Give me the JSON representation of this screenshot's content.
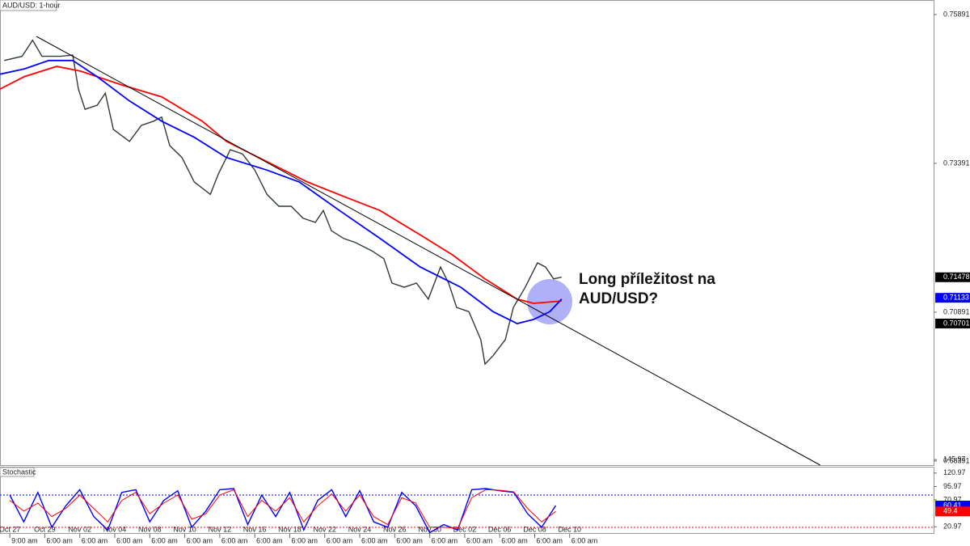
{
  "chart_data": [
    {
      "type": "line",
      "title": "AUD/USD: 1-hour",
      "xlim": [
        -0.28,
        26.4
      ],
      "ylim": [
        0.68322,
        0.76136
      ],
      "yticks": [
        0.75891,
        0.73391,
        0.70891,
        0.68391
      ],
      "xticks": [
        {
          "value": 0,
          "label": "Oct 27"
        },
        {
          "value": 1,
          "label": "Oct 29"
        },
        {
          "value": 2,
          "label": "Nov 02"
        },
        {
          "value": 3,
          "label": "Nov 04"
        },
        {
          "value": 4,
          "label": "Nov 08"
        },
        {
          "value": 5,
          "label": "Nov 10"
        },
        {
          "value": 6,
          "label": "Nov 12"
        },
        {
          "value": 7,
          "label": "Nov 16"
        },
        {
          "value": 8,
          "label": "Nov 18"
        },
        {
          "value": 9,
          "label": "Nov 22"
        },
        {
          "value": 10,
          "label": "Nov 24"
        },
        {
          "value": 11,
          "label": "Nov 26"
        },
        {
          "value": 12,
          "label": "Nov 30"
        },
        {
          "value": 13,
          "label": "Dec 02"
        },
        {
          "value": 14,
          "label": "Dec 06"
        },
        {
          "value": 15,
          "label": "Dec 08"
        },
        {
          "value": 16,
          "label": "Dec 10"
        }
      ],
      "xtick_times": [
        "9:00 am",
        "6:00 am",
        "6:00 am",
        "6:00 am",
        "6:00 am",
        "6:00 am",
        "6:00 am",
        "6:00 am",
        "6:00 am",
        "6:00 am",
        "6:00 am",
        "6:00 am",
        "6:00 am",
        "6:00 am",
        "6:00 am",
        "6:00 am",
        "6:00 am"
      ],
      "series": [
        {
          "color": "#2f3b2f",
          "x": [
            -0.16,
            0.35,
            0.65,
            0.92,
            1.45,
            1.8,
            1.96,
            2.15,
            2.5,
            2.73,
            2.96,
            3.42,
            3.76,
            4.11,
            4.34,
            4.57,
            4.92,
            5.27,
            5.73,
            5.96,
            6.3,
            6.65,
            7.0,
            7.35,
            7.69,
            8.04,
            8.38,
            8.73,
            8.96,
            9.19,
            9.54,
            9.88,
            10.35,
            10.69,
            10.92,
            11.27,
            11.62,
            11.96,
            12.31,
            12.54,
            12.77,
            13.12,
            13.46,
            13.58,
            13.81,
            14.16,
            14.39,
            14.73,
            15.08,
            15.31,
            15.54,
            15.77
          ],
          "values": [
            0.7512,
            0.7519,
            0.7546,
            0.7519,
            0.7519,
            0.7521,
            0.7464,
            0.743,
            0.7437,
            0.7457,
            0.7396,
            0.7376,
            0.7403,
            0.741,
            0.7417,
            0.7369,
            0.7349,
            0.7308,
            0.7287,
            0.7321,
            0.7362,
            0.7355,
            0.7328,
            0.7287,
            0.7267,
            0.7267,
            0.7247,
            0.724,
            0.726,
            0.7226,
            0.7213,
            0.7206,
            0.7192,
            0.7179,
            0.7138,
            0.7131,
            0.7138,
            0.7111,
            0.7165,
            0.7138,
            0.7097,
            0.709,
            0.7043,
            0.7002,
            0.7016,
            0.7043,
            0.7097,
            0.7131,
            0.7172,
            0.7165,
            0.7145,
            0.7148
          ]
        },
        {
          "color": "#ff0000",
          "x": [
            -0.28,
            0.42,
            1.34,
            2.03,
            3.19,
            4.34,
            5.5,
            6.19,
            7.11,
            8.5,
            9.65,
            10.58,
            11.73,
            12.66,
            13.58,
            14.5,
            14.97,
            15.77
          ],
          "values": [
            0.7464,
            0.7485,
            0.7502,
            0.7494,
            0.7471,
            0.7451,
            0.741,
            0.7376,
            0.7349,
            0.7308,
            0.7281,
            0.726,
            0.7219,
            0.7185,
            0.7145,
            0.7111,
            0.7104,
            0.7108
          ]
        },
        {
          "color": "#0000ff",
          "x": [
            -0.28,
            0.42,
            1.11,
            1.8,
            2.49,
            3.42,
            4.34,
            5.27,
            6.19,
            7.34,
            8.27,
            9.42,
            10.58,
            11.73,
            12.89,
            13.81,
            14.5,
            14.97,
            15.43,
            15.77
          ],
          "values": [
            0.7489,
            0.7498,
            0.7512,
            0.7512,
            0.7485,
            0.7444,
            0.741,
            0.7383,
            0.7349,
            0.7328,
            0.7308,
            0.726,
            0.7213,
            0.7165,
            0.7131,
            0.709,
            0.707,
            0.7077,
            0.709,
            0.7111
          ]
        },
        {
          "color": "#000000",
          "x": [
            0.76,
            23.16
          ],
          "values": [
            0.75524,
            0.68322
          ]
        }
      ],
      "price_tags": [
        {
          "value": 0.71478,
          "color": "#000000"
        },
        {
          "value": 0.71133,
          "color": "#0000ff"
        },
        {
          "value": 0.70701,
          "color": "#000000"
        }
      ],
      "annotation": [
        "Long příležitost na",
        "AUD/USD?"
      ]
    },
    {
      "type": "line",
      "title": "Stochastic",
      "xlim": [
        -0.28,
        26.4
      ],
      "ylim": [
        7.7,
        132.7
      ],
      "yticks": [
        145.97,
        120.97,
        95.97,
        70.97,
        20.97
      ],
      "levels": [
        {
          "value": 80,
          "color": "#0000ff"
        },
        {
          "value": 20,
          "color": "#ff0000"
        }
      ],
      "x": [
        0,
        0.4,
        0.8,
        1.2,
        1.6,
        2,
        2.4,
        2.8,
        3.2,
        3.6,
        4,
        4.4,
        4.8,
        5.2,
        5.6,
        6,
        6.4,
        6.8,
        7.2,
        7.6,
        8,
        8.4,
        8.8,
        9.2,
        9.6,
        10,
        10.4,
        10.8,
        11.2,
        11.6,
        12,
        12.4,
        12.8,
        13.2,
        13.6,
        14,
        14.4,
        14.8,
        15.2,
        15.6
      ],
      "series": [
        {
          "color": "#0000ff",
          "values": [
            80,
            30,
            85,
            20,
            60,
            90,
            40,
            15,
            85,
            90,
            30,
            70,
            88,
            20,
            50,
            90,
            92,
            25,
            80,
            40,
            85,
            15,
            70,
            90,
            40,
            88,
            30,
            20,
            85,
            60,
            10,
            25,
            15,
            90,
            92,
            88,
            85,
            45,
            20,
            60.41
          ]
        },
        {
          "color": "#ff0000",
          "values": [
            70,
            50,
            65,
            40,
            55,
            80,
            55,
            30,
            70,
            85,
            45,
            65,
            80,
            35,
            45,
            80,
            90,
            40,
            70,
            50,
            75,
            30,
            60,
            82,
            50,
            80,
            40,
            25,
            75,
            65,
            20,
            20,
            18,
            75,
            90,
            89,
            86,
            55,
            30,
            49.4
          ]
        }
      ],
      "tags": [
        {
          "value": 60.41,
          "color": "#0000ff"
        },
        {
          "value": 49.4,
          "color": "#ff0000"
        }
      ]
    }
  ]
}
